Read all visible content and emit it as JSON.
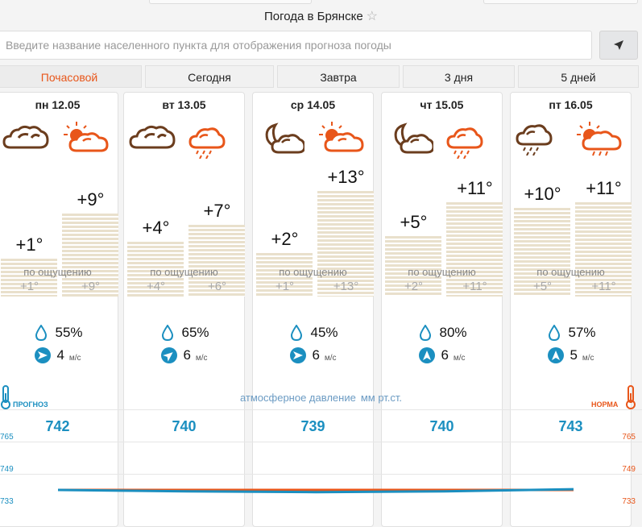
{
  "title": "Погода в Брянске",
  "search": {
    "placeholder": "Введите название населенного пункта для отображения прогноза погоды"
  },
  "tabs": [
    "Почасовой",
    "Сегодня",
    "Завтра",
    "3 дня",
    "5 дней"
  ],
  "days": [
    {
      "name": "пн 12.05",
      "night": "+1°",
      "day": "+9°",
      "feel_night": "+1°",
      "feel_day": "+9°",
      "humidity": "55%",
      "wind": "4",
      "pressure": "742",
      "night_temp": 1,
      "day_temp": 9,
      "icon_night": "cloudy-icon",
      "icon_day": "partly-cloudy-day-icon",
      "wind_dir": "wind-east-icon"
    },
    {
      "name": "вт 13.05",
      "night": "+4°",
      "day": "+7°",
      "feel_night": "+4°",
      "feel_day": "+6°",
      "humidity": "65%",
      "wind": "6",
      "pressure": "740",
      "night_temp": 4,
      "day_temp": 7,
      "icon_night": "cloudy-icon",
      "icon_day": "rain-cloud-icon",
      "wind_dir": "wind-northeast-icon"
    },
    {
      "name": "ср 14.05",
      "night": "+2°",
      "day": "+13°",
      "feel_night": "+1°",
      "feel_day": "+13°",
      "humidity": "45%",
      "wind": "6",
      "pressure": "739",
      "night_temp": 2,
      "day_temp": 13,
      "icon_night": "moon-cloud-icon",
      "icon_day": "partly-cloudy-day-icon",
      "wind_dir": "wind-east-icon"
    },
    {
      "name": "чт 15.05",
      "night": "+5°",
      "day": "+11°",
      "feel_night": "+2°",
      "feel_day": "+11°",
      "humidity": "80%",
      "wind": "6",
      "pressure": "740",
      "night_temp": 5,
      "day_temp": 11,
      "icon_night": "moon-cloud-icon",
      "icon_day": "rain-cloud-icon",
      "wind_dir": "wind-north-icon"
    },
    {
      "name": "пт 16.05",
      "night": "+10°",
      "day": "+11°",
      "feel_night": "+5°",
      "feel_day": "+11°",
      "humidity": "57%",
      "wind": "5",
      "pressure": "743",
      "night_temp": 10,
      "day_temp": 11,
      "icon_night": "rain-cloud-dark-icon",
      "icon_day": "sun-rain-cloud-icon",
      "wind_dir": "wind-north-icon"
    }
  ],
  "feels_like_label": "по ощущению",
  "wind_unit": "м/с",
  "pressure": {
    "label": "атмосферное давление",
    "unit": "мм рт.ст.",
    "forecast_label": "ПРОГНОЗ",
    "norm_label": "НОРМА",
    "axis": [
      "765",
      "749",
      "733"
    ]
  },
  "colors": {
    "accent": "#e8561a",
    "blue": "#1b8fc0"
  }
}
